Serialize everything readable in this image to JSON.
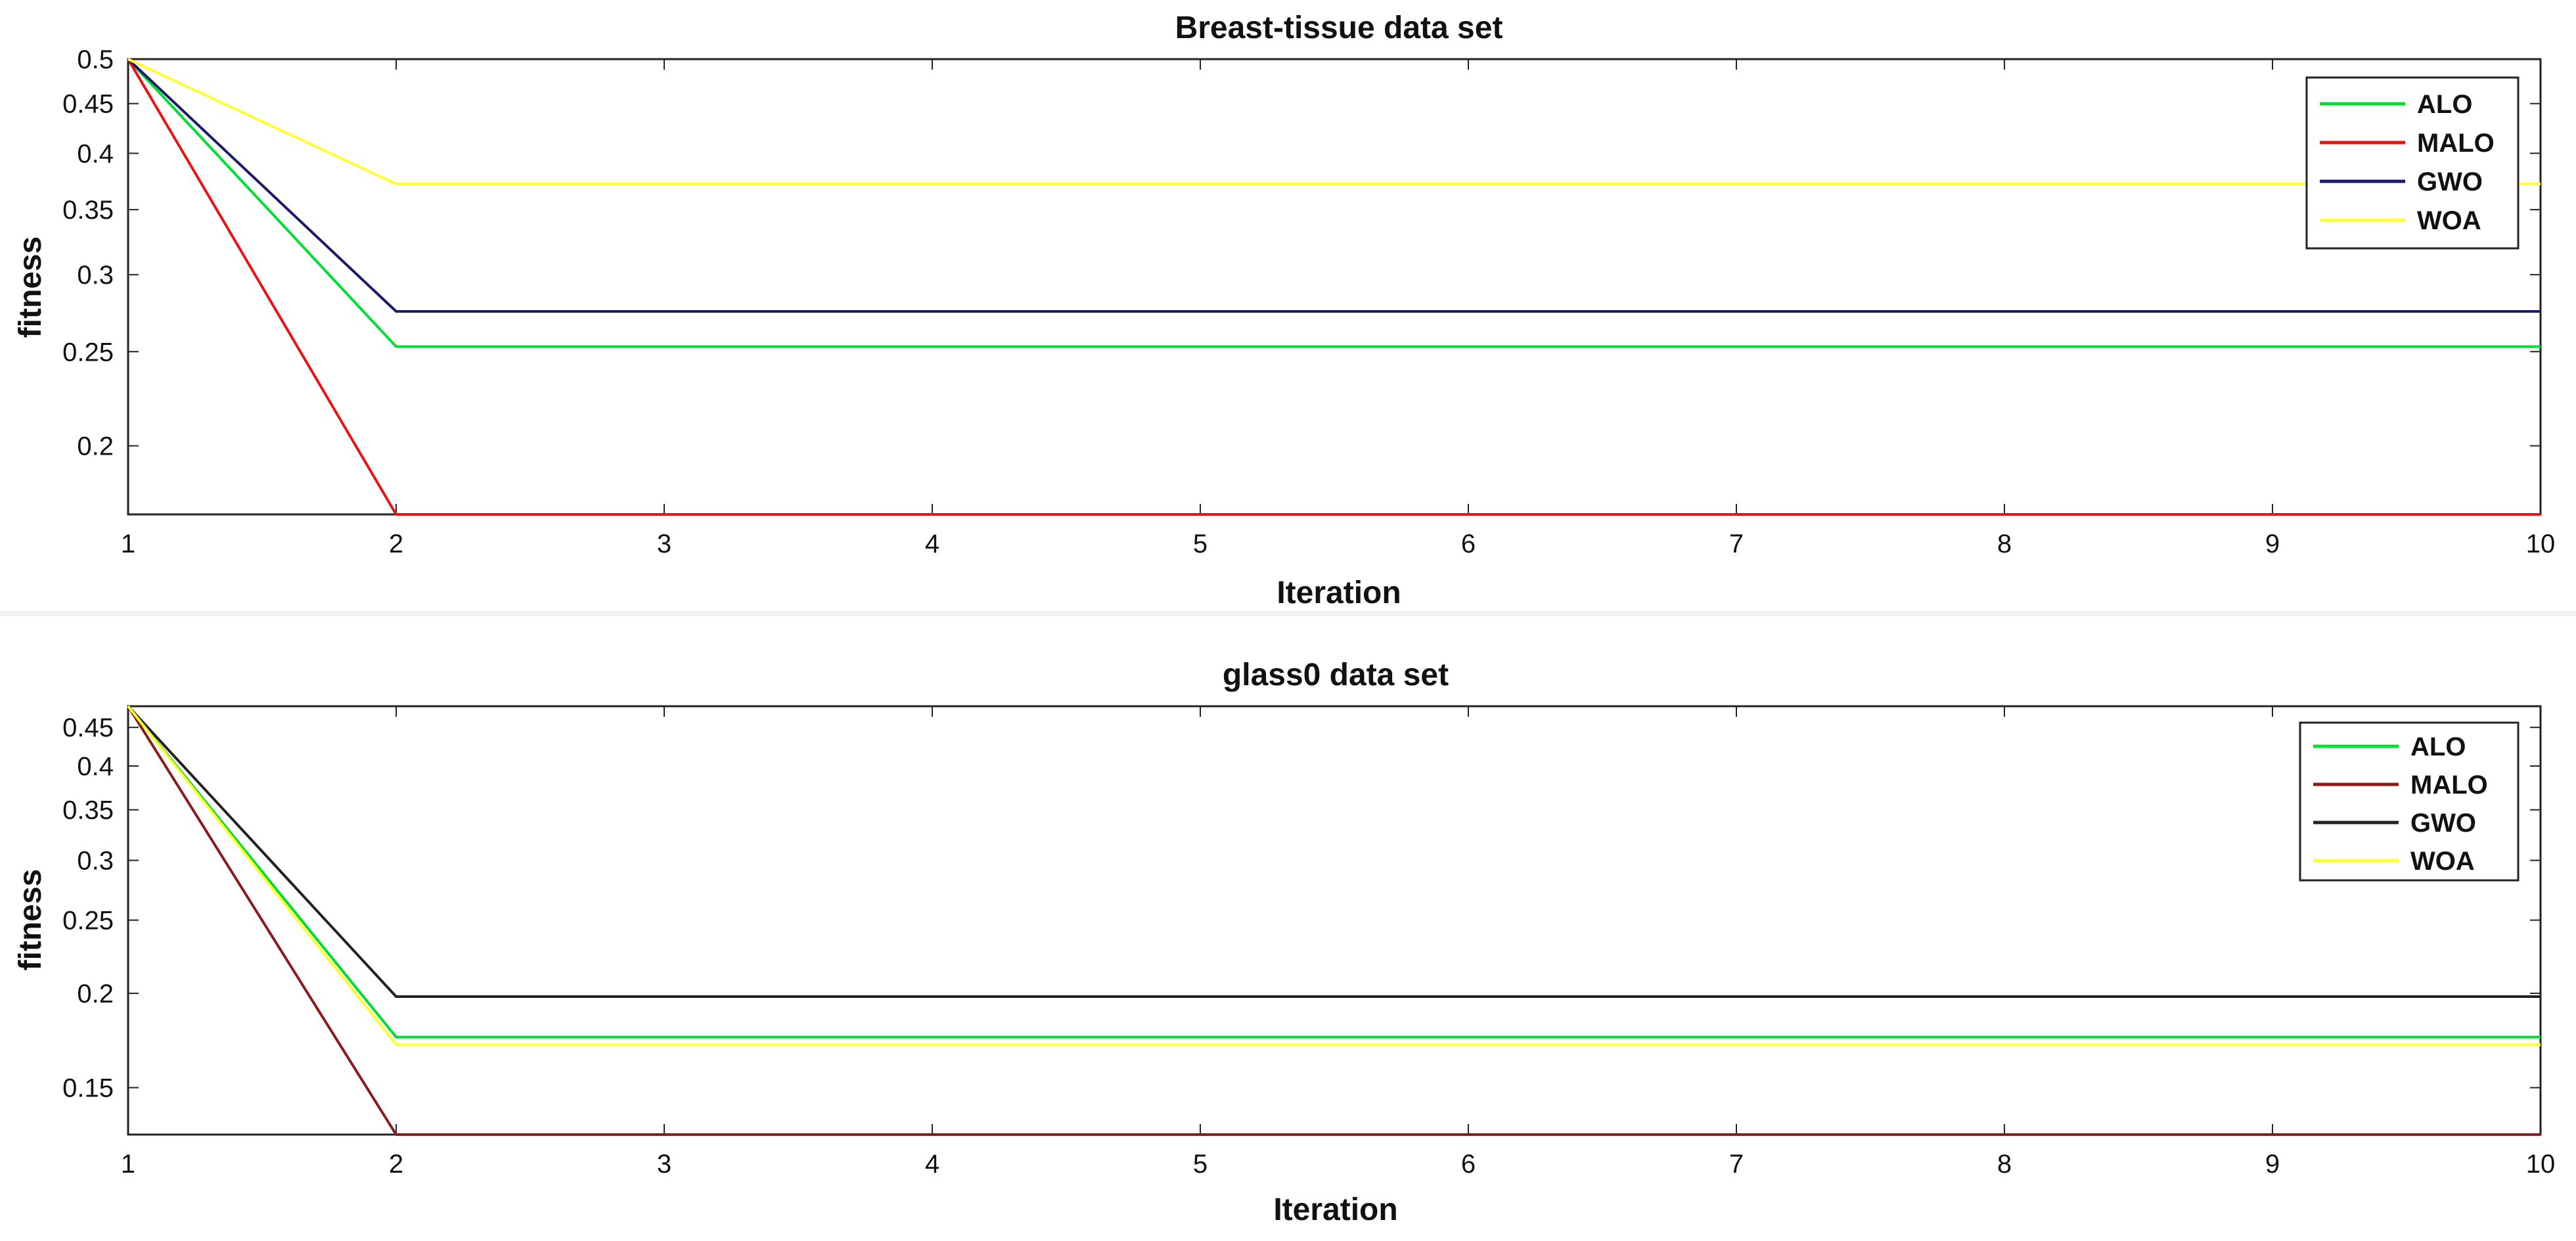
{
  "chart_data": [
    {
      "type": "line",
      "title": "Breast-tissue data set",
      "xlabel": "Iteration",
      "ylabel": "fitness",
      "yscale": "log",
      "xlim": [
        1,
        10
      ],
      "ylim": [
        0.17,
        0.5
      ],
      "x": [
        1,
        2,
        3,
        4,
        5,
        6,
        7,
        8,
        9,
        10
      ],
      "xticks": [
        "1",
        "2",
        "3",
        "4",
        "5",
        "6",
        "7",
        "8",
        "9",
        "10"
      ],
      "yticks": [
        0.2,
        0.25,
        0.3,
        0.35,
        0.4,
        0.45,
        0.5
      ],
      "ytick_labels": [
        "0.2",
        "0.25",
        "0.3",
        "0.35",
        "0.4",
        "0.45",
        "0.5"
      ],
      "legend_position": "top-right",
      "series": [
        {
          "name": "ALO",
          "color": "#00dd33",
          "values": [
            0.5,
            0.253,
            0.253,
            0.253,
            0.253,
            0.253,
            0.253,
            0.253,
            0.253,
            0.253
          ]
        },
        {
          "name": "MALO",
          "color": "#ee1111",
          "values": [
            0.5,
            0.17,
            0.17,
            0.17,
            0.17,
            0.17,
            0.17,
            0.17,
            0.17,
            0.17
          ]
        },
        {
          "name": "GWO",
          "color": "#1a1a6a",
          "values": [
            0.5,
            0.275,
            0.275,
            0.275,
            0.275,
            0.275,
            0.275,
            0.275,
            0.275,
            0.275
          ]
        },
        {
          "name": "WOA",
          "color": "#ffff33",
          "values": [
            0.5,
            0.372,
            0.372,
            0.372,
            0.372,
            0.372,
            0.372,
            0.372,
            0.372,
            0.372
          ]
        }
      ]
    },
    {
      "type": "line",
      "title": "glass0 data set",
      "xlabel": "Iteration",
      "ylabel": "fitness",
      "yscale": "log",
      "xlim": [
        1,
        10
      ],
      "ylim": [
        0.13,
        0.48
      ],
      "x": [
        1,
        2,
        3,
        4,
        5,
        6,
        7,
        8,
        9,
        10
      ],
      "xticks": [
        "1",
        "2",
        "3",
        "4",
        "5",
        "6",
        "7",
        "8",
        "9",
        "10"
      ],
      "yticks": [
        0.15,
        0.2,
        0.25,
        0.3,
        0.35,
        0.4,
        0.45
      ],
      "ytick_labels": [
        "0.15",
        "0.2",
        "0.25",
        "0.3",
        "0.35",
        "0.4",
        "0.45"
      ],
      "legend_position": "top-right",
      "series": [
        {
          "name": "ALO",
          "color": "#00dd33",
          "values": [
            0.48,
            0.175,
            0.175,
            0.175,
            0.175,
            0.175,
            0.175,
            0.175,
            0.175,
            0.175
          ]
        },
        {
          "name": "MALO",
          "color": "#8b1a1a",
          "values": [
            0.48,
            0.13,
            0.13,
            0.13,
            0.13,
            0.13,
            0.13,
            0.13,
            0.13,
            0.13
          ]
        },
        {
          "name": "GWO",
          "color": "#222222",
          "values": [
            0.48,
            0.198,
            0.198,
            0.198,
            0.198,
            0.198,
            0.198,
            0.198,
            0.198,
            0.198
          ]
        },
        {
          "name": "WOA",
          "color": "#ffff33",
          "values": [
            0.48,
            0.171,
            0.171,
            0.171,
            0.171,
            0.171,
            0.171,
            0.171,
            0.171,
            0.171
          ]
        }
      ]
    }
  ]
}
